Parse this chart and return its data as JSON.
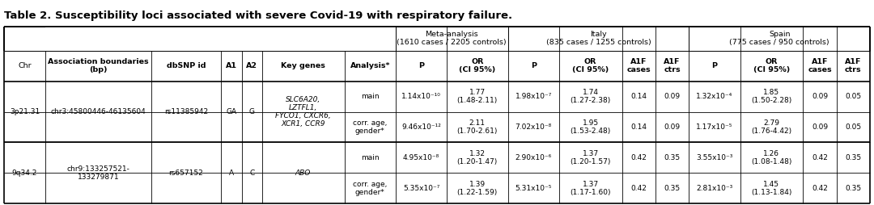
{
  "title": "Table 2. Susceptibility loci associated with severe Covid-19 with respiratory failure.",
  "rows": [
    {
      "chr": "3p21.31",
      "assoc": "chr3:45800446-46135604",
      "dbsnp": "rs11385942",
      "a1": "GA",
      "a2": "G",
      "genes": "SLC6A20,\nLZTFL1,\nFYCO1, CXCR6,\nXCR1, CCR9",
      "sub_rows": [
        {
          "analysis": "main",
          "meta_p": "1.14x10⁻¹⁰",
          "meta_or": "1.77\n(1.48-2.11)",
          "italy_p": "1.98x10⁻⁷",
          "italy_or": "1.74\n(1.27-2.38)",
          "italy_a1f_cases": "0.14",
          "italy_a1f_ctrs": "0.09",
          "spain_p": "1.32x10⁻⁴",
          "spain_or": "1.85\n(1.50-2.28)",
          "spain_a1f_cases": "0.09",
          "spain_a1f_ctrs": "0.05"
        },
        {
          "analysis": "corr. age,\ngender*",
          "meta_p": "9.46x10⁻¹²",
          "meta_or": "2.11\n(1.70-2.61)",
          "italy_p": "7.02x10⁻⁸",
          "italy_or": "1.95\n(1.53-2.48)",
          "italy_a1f_cases": "0.14",
          "italy_a1f_ctrs": "0.09",
          "spain_p": "1.17x10⁻⁵",
          "spain_or": "2.79\n(1.76-4.42)",
          "spain_a1f_cases": "0.09",
          "spain_a1f_ctrs": "0.05"
        }
      ]
    },
    {
      "chr": "9q34.2",
      "assoc": "chr9:133257521-\n133279871",
      "dbsnp": "rs657152",
      "a1": "A",
      "a2": "C",
      "genes": "ABO",
      "sub_rows": [
        {
          "analysis": "main",
          "meta_p": "4.95x10⁻⁸",
          "meta_or": "1.32\n(1.20-1.47)",
          "italy_p": "2.90x10⁻⁶",
          "italy_or": "1.37\n(1.20-1.57)",
          "italy_a1f_cases": "0.42",
          "italy_a1f_ctrs": "0.35",
          "spain_p": "3.55x10⁻³",
          "spain_or": "1.26\n(1.08-1.48)",
          "spain_a1f_cases": "0.42",
          "spain_a1f_ctrs": "0.35"
        },
        {
          "analysis": "corr. age,\ngender*",
          "meta_p": "5.35x10⁻⁷",
          "meta_or": "1.39\n(1.22-1.59)",
          "italy_p": "5.31x10⁻⁵",
          "italy_or": "1.37\n(1.17-1.60)",
          "italy_a1f_cases": "0.42",
          "italy_a1f_ctrs": "0.35",
          "spain_p": "2.81x10⁻³",
          "spain_or": "1.45\n(1.13-1.84)",
          "spain_a1f_cases": "0.42",
          "spain_a1f_ctrs": "0.35"
        }
      ]
    }
  ],
  "col_widths_pts": [
    42,
    108,
    70,
    22,
    20,
    84,
    52,
    52,
    62,
    52,
    64,
    34,
    34,
    52,
    64,
    34,
    34
  ],
  "row_heights_pts": [
    28,
    38,
    38,
    38,
    38,
    38
  ],
  "title_fontsize": 9.5,
  "header_fontsize": 6.8,
  "data_fontsize": 6.5,
  "bg_color": "#ffffff",
  "text_color": "#000000"
}
